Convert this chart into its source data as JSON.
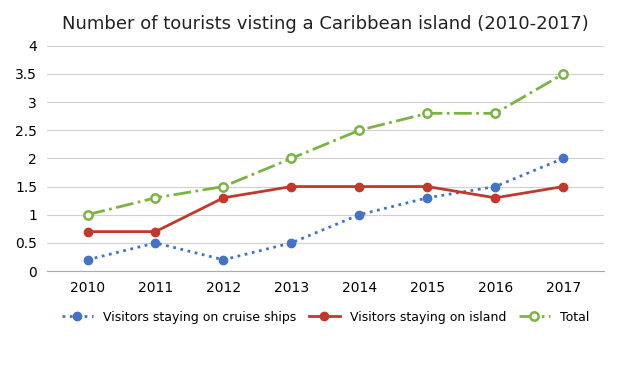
{
  "title": "Number of tourists visting a Caribbean island (2010-2017)",
  "years": [
    2010,
    2011,
    2012,
    2013,
    2014,
    2015,
    2016,
    2017
  ],
  "cruise_ships": [
    0.2,
    0.5,
    0.2,
    0.5,
    1.0,
    1.3,
    1.5,
    2.0
  ],
  "on_island": [
    0.7,
    0.7,
    1.3,
    1.5,
    1.5,
    1.5,
    1.3,
    1.5
  ],
  "total": [
    1.0,
    1.3,
    1.5,
    2.0,
    2.5,
    2.8,
    2.8,
    3.5
  ],
  "cruise_color": "#4472C4",
  "island_color": "#C0392B",
  "total_color": "#7CB342",
  "ylim": [
    0,
    4.05
  ],
  "ytick_vals": [
    0,
    0.5,
    1.0,
    1.5,
    2.0,
    2.5,
    3.0,
    3.5,
    4.0
  ],
  "ytick_labels": [
    "0",
    "0.5",
    "1",
    "1.5",
    "2",
    "2.5",
    "3",
    "3.5",
    "4"
  ],
  "legend_cruise": "Visitors staying on cruise ships",
  "legend_island": "Visitors staying on island",
  "legend_total": "Total",
  "background_color": "#ffffff",
  "grid_color": "#d0d0d0",
  "title_fontsize": 13,
  "tick_fontsize": 10
}
